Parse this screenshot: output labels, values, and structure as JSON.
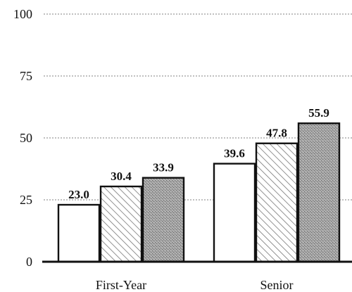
{
  "chart_data": {
    "type": "bar",
    "categories": [
      "First-Year",
      "Senior"
    ],
    "series": [
      {
        "values": [
          23.0,
          39.6
        ],
        "fill": "#ffffff"
      },
      {
        "values": [
          30.4,
          47.8
        ],
        "fill": "#f4f4f4",
        "pattern": "hatch"
      },
      {
        "values": [
          33.9,
          55.9
        ],
        "fill": "#9c9c9c",
        "pattern": "stipple"
      }
    ],
    "data_labels": [
      [
        "23.0",
        "30.4",
        "33.9"
      ],
      [
        "39.6",
        "47.8",
        "55.9"
      ]
    ],
    "y_ticks": [
      "0",
      "25",
      "50",
      "75",
      "100"
    ],
    "ylim": [
      0,
      100
    ],
    "grid": true,
    "title": "",
    "xlabel": "",
    "ylabel": ""
  }
}
